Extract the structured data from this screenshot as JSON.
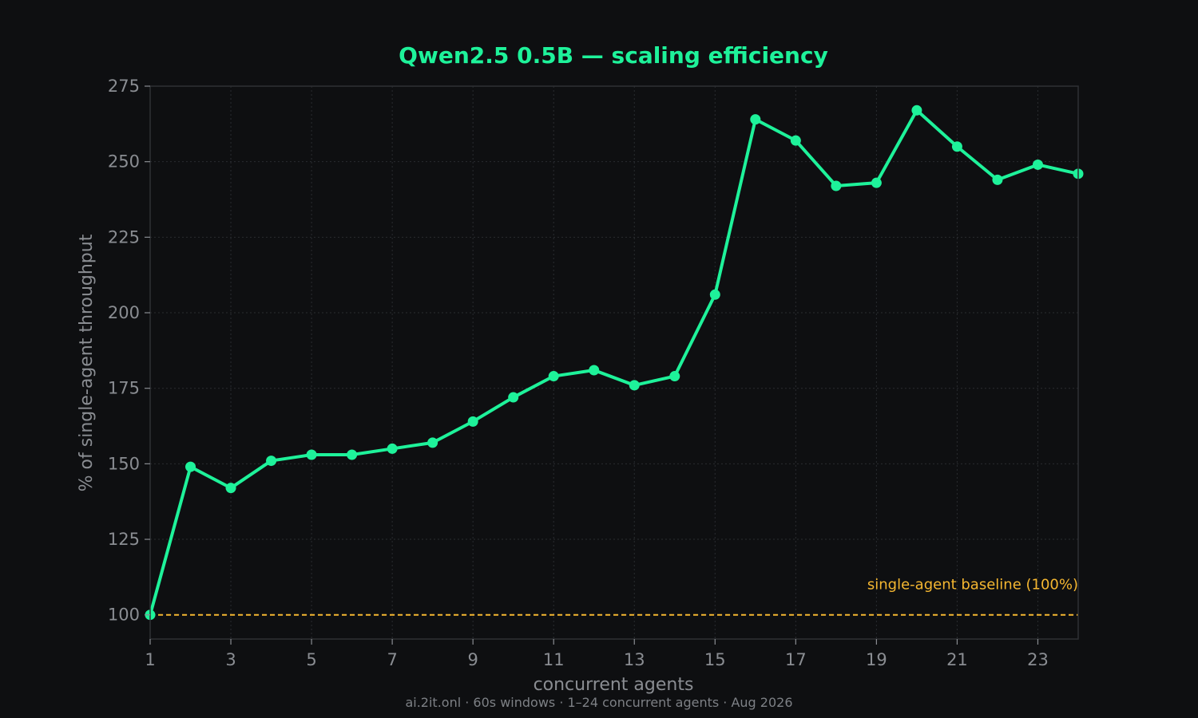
{
  "colors": {
    "background": "#0e0f11",
    "series": "#1ef29a",
    "baseline": "#f5b731",
    "grid": "#2a2c30",
    "text": "#8a8d92",
    "spine": "#2e3034"
  },
  "chart_data": {
    "type": "line",
    "title": "Qwen2.5 0.5B — scaling efficiency",
    "xlabel": "concurrent agents",
    "ylabel": "% of single-agent throughput",
    "footer": "ai.2it.onl · 60s windows · 1–24 concurrent agents · Aug 2026",
    "xlim": [
      1,
      24
    ],
    "ylim": [
      92,
      275
    ],
    "xticks": [
      1,
      3,
      5,
      7,
      9,
      11,
      13,
      15,
      17,
      19,
      21,
      23
    ],
    "yticks": [
      100,
      125,
      150,
      175,
      200,
      225,
      250,
      275
    ],
    "grid": true,
    "x": [
      1,
      2,
      3,
      4,
      5,
      6,
      7,
      8,
      9,
      10,
      11,
      12,
      13,
      14,
      15,
      16,
      17,
      18,
      19,
      20,
      21,
      22,
      23,
      24
    ],
    "series": [
      {
        "values": [
          100,
          149,
          142,
          151,
          153,
          153,
          155,
          157,
          164,
          172,
          179,
          181,
          176,
          179,
          206,
          264,
          257,
          242,
          243,
          267,
          255,
          244,
          249,
          246
        ]
      }
    ],
    "annotations": [
      {
        "type": "hline",
        "y": 100,
        "label": "single-agent baseline (100%)",
        "style": "dashed"
      }
    ]
  }
}
